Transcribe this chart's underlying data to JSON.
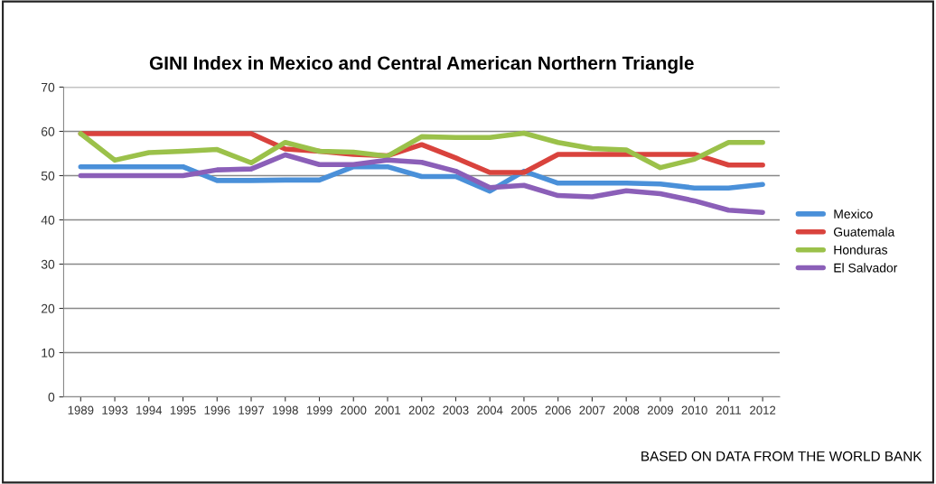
{
  "chart_data": {
    "type": "line",
    "title": "GINI Index in Mexico and Central American Northern Triangle",
    "categories": [
      "1989",
      "1993",
      "1994",
      "1995",
      "1996",
      "1997",
      "1998",
      "1999",
      "2000",
      "2001",
      "2002",
      "2003",
      "2004",
      "2005",
      "2006",
      "2007",
      "2008",
      "2009",
      "2010",
      "2011",
      "2012"
    ],
    "series": [
      {
        "name": "Mexico",
        "color": "#4a90d9",
        "values": [
          52,
          52,
          52,
          52,
          48.9,
          48.9,
          49,
          49,
          52,
          52,
          49.8,
          49.8,
          46.5,
          51,
          48.3,
          48.3,
          48.3,
          48.1,
          47.2,
          47.2,
          48
        ]
      },
      {
        "name": "Guatemala",
        "color": "#d9433d",
        "values": [
          59.5,
          59.5,
          59.5,
          59.5,
          59.5,
          59.5,
          56,
          55.5,
          54.8,
          54.5,
          57,
          54,
          50.7,
          50.7,
          54.8,
          54.8,
          54.8,
          54.8,
          54.8,
          52.4,
          52.4
        ]
      },
      {
        "name": "Honduras",
        "color": "#9bc14a",
        "values": [
          59.5,
          53.5,
          55.2,
          55.5,
          55.9,
          52.9,
          57.5,
          55.5,
          55.3,
          54.4,
          58.8,
          58.6,
          58.6,
          59.6,
          57.5,
          56.1,
          55.8,
          51.8,
          53.7,
          57.5,
          57.5
        ]
      },
      {
        "name": "El Salvador",
        "color": "#8b5fb8",
        "values": [
          50,
          50,
          50,
          50,
          51.3,
          51.5,
          54.7,
          52.5,
          52.5,
          53.5,
          53,
          51,
          47.3,
          47.8,
          45.5,
          45.2,
          46.6,
          45.9,
          44.3,
          42.2,
          41.7
        ]
      }
    ],
    "ylim": [
      0,
      70
    ],
    "yticks": [
      0,
      10,
      20,
      30,
      40,
      50,
      60,
      70
    ],
    "grid": "y",
    "legend": "right",
    "marker": "none",
    "line_style": "solid",
    "annotations": [
      "BASED ON DATA FROM THE WORLD BANK"
    ]
  }
}
